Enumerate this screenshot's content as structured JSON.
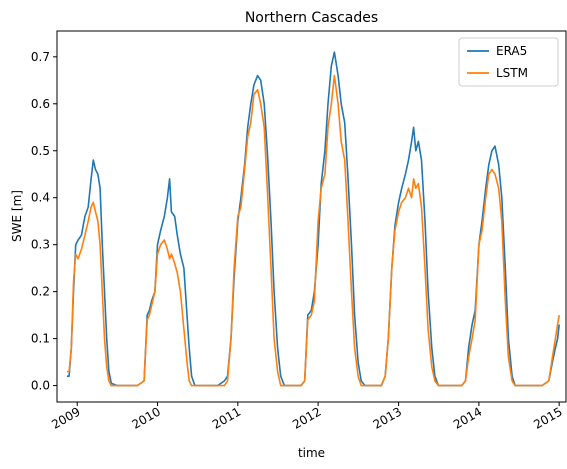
{
  "chart_data": {
    "type": "line",
    "title": "Northern Cascades",
    "xlabel": "time",
    "ylabel": "SWE [m]",
    "xlim": [
      "2008-10-01",
      "2015-02-01"
    ],
    "ylim": [
      -0.035,
      0.755
    ],
    "xticks": [
      {
        "date": "2009-01-01",
        "label": "2009"
      },
      {
        "date": "2010-01-01",
        "label": "2010"
      },
      {
        "date": "2011-01-01",
        "label": "2011"
      },
      {
        "date": "2012-01-01",
        "label": "2012"
      },
      {
        "date": "2013-01-01",
        "label": "2013"
      },
      {
        "date": "2014-01-01",
        "label": "2014"
      },
      {
        "date": "2015-01-01",
        "label": "2015"
      }
    ],
    "yticks": [
      {
        "value": 0.0,
        "label": "0.0"
      },
      {
        "value": 0.1,
        "label": "0.1"
      },
      {
        "value": 0.2,
        "label": "0.2"
      },
      {
        "value": 0.3,
        "label": "0.3"
      },
      {
        "value": 0.4,
        "label": "0.4"
      },
      {
        "value": 0.5,
        "label": "0.5"
      },
      {
        "value": 0.6,
        "label": "0.6"
      },
      {
        "value": 0.7,
        "label": "0.7"
      }
    ],
    "legend_position": "top-right",
    "grid": false,
    "series": [
      {
        "name": "ERA5",
        "color": "#1f77b4",
        "points": [
          [
            "2008-11-15",
            0.02
          ],
          [
            "2008-11-25",
            0.02
          ],
          [
            "2008-12-05",
            0.08
          ],
          [
            "2008-12-15",
            0.2
          ],
          [
            "2008-12-25",
            0.3
          ],
          [
            "2009-01-05",
            0.31
          ],
          [
            "2009-01-20",
            0.32
          ],
          [
            "2009-02-05",
            0.36
          ],
          [
            "2009-02-20",
            0.38
          ],
          [
            "2009-03-05",
            0.44
          ],
          [
            "2009-03-15",
            0.48
          ],
          [
            "2009-03-25",
            0.46
          ],
          [
            "2009-04-05",
            0.45
          ],
          [
            "2009-04-15",
            0.42
          ],
          [
            "2009-04-25",
            0.3
          ],
          [
            "2009-05-05",
            0.2
          ],
          [
            "2009-05-15",
            0.1
          ],
          [
            "2009-05-25",
            0.03
          ],
          [
            "2009-06-05",
            0.005
          ],
          [
            "2009-07-01",
            0.0
          ],
          [
            "2009-10-01",
            0.0
          ],
          [
            "2009-11-01",
            0.01
          ],
          [
            "2009-11-15",
            0.15
          ],
          [
            "2009-11-25",
            0.16
          ],
          [
            "2009-12-05",
            0.18
          ],
          [
            "2009-12-20",
            0.2
          ],
          [
            "2010-01-01",
            0.3
          ],
          [
            "2010-01-15",
            0.33
          ],
          [
            "2010-02-01",
            0.36
          ],
          [
            "2010-02-15",
            0.4
          ],
          [
            "2010-02-25",
            0.44
          ],
          [
            "2010-03-05",
            0.37
          ],
          [
            "2010-03-20",
            0.36
          ],
          [
            "2010-04-01",
            0.32
          ],
          [
            "2010-04-15",
            0.28
          ],
          [
            "2010-05-01",
            0.25
          ],
          [
            "2010-05-15",
            0.15
          ],
          [
            "2010-05-25",
            0.08
          ],
          [
            "2010-06-05",
            0.02
          ],
          [
            "2010-06-20",
            0.0
          ],
          [
            "2010-10-01",
            0.0
          ],
          [
            "2010-11-01",
            0.01
          ],
          [
            "2010-11-15",
            0.02
          ],
          [
            "2010-12-01",
            0.1
          ],
          [
            "2010-12-15",
            0.23
          ],
          [
            "2011-01-01",
            0.35
          ],
          [
            "2011-01-15",
            0.4
          ],
          [
            "2011-02-01",
            0.47
          ],
          [
            "2011-02-15",
            0.55
          ],
          [
            "2011-03-01",
            0.6
          ],
          [
            "2011-03-15",
            0.64
          ],
          [
            "2011-04-01",
            0.66
          ],
          [
            "2011-04-15",
            0.65
          ],
          [
            "2011-05-01",
            0.6
          ],
          [
            "2011-05-15",
            0.5
          ],
          [
            "2011-06-01",
            0.35
          ],
          [
            "2011-06-15",
            0.2
          ],
          [
            "2011-07-01",
            0.08
          ],
          [
            "2011-07-15",
            0.02
          ],
          [
            "2011-08-01",
            0.0
          ],
          [
            "2011-10-15",
            0.0
          ],
          [
            "2011-11-01",
            0.01
          ],
          [
            "2011-11-15",
            0.15
          ],
          [
            "2011-12-01",
            0.16
          ],
          [
            "2011-12-15",
            0.2
          ],
          [
            "2012-01-01",
            0.3
          ],
          [
            "2012-01-15",
            0.43
          ],
          [
            "2012-02-01",
            0.5
          ],
          [
            "2012-02-15",
            0.6
          ],
          [
            "2012-03-01",
            0.68
          ],
          [
            "2012-03-15",
            0.71
          ],
          [
            "2012-04-01",
            0.66
          ],
          [
            "2012-04-15",
            0.6
          ],
          [
            "2012-05-01",
            0.56
          ],
          [
            "2012-05-15",
            0.45
          ],
          [
            "2012-06-01",
            0.3
          ],
          [
            "2012-06-15",
            0.15
          ],
          [
            "2012-07-01",
            0.05
          ],
          [
            "2012-07-15",
            0.01
          ],
          [
            "2012-08-01",
            0.0
          ],
          [
            "2012-10-15",
            0.0
          ],
          [
            "2012-11-01",
            0.02
          ],
          [
            "2012-11-15",
            0.1
          ],
          [
            "2012-12-01",
            0.25
          ],
          [
            "2012-12-15",
            0.34
          ],
          [
            "2013-01-01",
            0.39
          ],
          [
            "2013-01-15",
            0.42
          ],
          [
            "2013-02-01",
            0.45
          ],
          [
            "2013-02-15",
            0.48
          ],
          [
            "2013-03-01",
            0.52
          ],
          [
            "2013-03-10",
            0.55
          ],
          [
            "2013-03-20",
            0.5
          ],
          [
            "2013-04-01",
            0.52
          ],
          [
            "2013-04-15",
            0.48
          ],
          [
            "2013-05-01",
            0.35
          ],
          [
            "2013-05-15",
            0.2
          ],
          [
            "2013-06-01",
            0.08
          ],
          [
            "2013-06-15",
            0.02
          ],
          [
            "2013-07-01",
            0.0
          ],
          [
            "2013-10-15",
            0.0
          ],
          [
            "2013-11-01",
            0.01
          ],
          [
            "2013-11-15",
            0.08
          ],
          [
            "2013-12-01",
            0.13
          ],
          [
            "2013-12-15",
            0.16
          ],
          [
            "2014-01-01",
            0.3
          ],
          [
            "2014-01-15",
            0.35
          ],
          [
            "2014-02-01",
            0.42
          ],
          [
            "2014-02-15",
            0.47
          ],
          [
            "2014-03-01",
            0.5
          ],
          [
            "2014-03-15",
            0.51
          ],
          [
            "2014-04-01",
            0.47
          ],
          [
            "2014-04-15",
            0.4
          ],
          [
            "2014-05-01",
            0.25
          ],
          [
            "2014-05-15",
            0.1
          ],
          [
            "2014-06-01",
            0.02
          ],
          [
            "2014-06-15",
            0.0
          ],
          [
            "2014-10-15",
            0.0
          ],
          [
            "2014-11-15",
            0.01
          ],
          [
            "2014-12-01",
            0.05
          ],
          [
            "2014-12-15",
            0.08
          ],
          [
            "2014-12-25",
            0.1
          ],
          [
            "2015-01-01",
            0.13
          ]
        ]
      },
      {
        "name": "LSTM",
        "color": "#ff7f0e",
        "points": [
          [
            "2008-11-15",
            0.03
          ],
          [
            "2008-11-25",
            0.03
          ],
          [
            "2008-12-05",
            0.08
          ],
          [
            "2008-12-15",
            0.22
          ],
          [
            "2008-12-25",
            0.28
          ],
          [
            "2009-01-05",
            0.27
          ],
          [
            "2009-01-20",
            0.29
          ],
          [
            "2009-02-05",
            0.32
          ],
          [
            "2009-02-20",
            0.35
          ],
          [
            "2009-03-05",
            0.38
          ],
          [
            "2009-03-15",
            0.39
          ],
          [
            "2009-03-25",
            0.37
          ],
          [
            "2009-04-05",
            0.35
          ],
          [
            "2009-04-15",
            0.3
          ],
          [
            "2009-04-25",
            0.2
          ],
          [
            "2009-05-05",
            0.1
          ],
          [
            "2009-05-15",
            0.04
          ],
          [
            "2009-05-25",
            0.01
          ],
          [
            "2009-06-05",
            0.0
          ],
          [
            "2009-07-01",
            0.0
          ],
          [
            "2009-10-01",
            0.0
          ],
          [
            "2009-11-01",
            0.01
          ],
          [
            "2009-11-15",
            0.14
          ],
          [
            "2009-11-25",
            0.15
          ],
          [
            "2009-12-05",
            0.17
          ],
          [
            "2009-12-20",
            0.2
          ],
          [
            "2010-01-01",
            0.28
          ],
          [
            "2010-01-15",
            0.3
          ],
          [
            "2010-02-01",
            0.31
          ],
          [
            "2010-02-15",
            0.29
          ],
          [
            "2010-02-25",
            0.27
          ],
          [
            "2010-03-05",
            0.28
          ],
          [
            "2010-03-20",
            0.26
          ],
          [
            "2010-04-01",
            0.24
          ],
          [
            "2010-04-15",
            0.2
          ],
          [
            "2010-05-01",
            0.12
          ],
          [
            "2010-05-15",
            0.05
          ],
          [
            "2010-05-25",
            0.01
          ],
          [
            "2010-06-05",
            0.0
          ],
          [
            "2010-06-20",
            0.0
          ],
          [
            "2010-10-01",
            0.0
          ],
          [
            "2010-11-01",
            0.0
          ],
          [
            "2010-11-15",
            0.01
          ],
          [
            "2010-12-01",
            0.1
          ],
          [
            "2010-12-15",
            0.25
          ],
          [
            "2011-01-01",
            0.36
          ],
          [
            "2011-01-15",
            0.38
          ],
          [
            "2011-02-01",
            0.46
          ],
          [
            "2011-02-15",
            0.53
          ],
          [
            "2011-03-01",
            0.56
          ],
          [
            "2011-03-15",
            0.62
          ],
          [
            "2011-04-01",
            0.63
          ],
          [
            "2011-04-15",
            0.6
          ],
          [
            "2011-05-01",
            0.55
          ],
          [
            "2011-05-15",
            0.42
          ],
          [
            "2011-06-01",
            0.25
          ],
          [
            "2011-06-15",
            0.1
          ],
          [
            "2011-07-01",
            0.03
          ],
          [
            "2011-07-15",
            0.0
          ],
          [
            "2011-08-01",
            0.0
          ],
          [
            "2011-10-15",
            0.0
          ],
          [
            "2011-11-01",
            0.01
          ],
          [
            "2011-11-15",
            0.14
          ],
          [
            "2011-12-01",
            0.15
          ],
          [
            "2011-12-15",
            0.18
          ],
          [
            "2012-01-01",
            0.35
          ],
          [
            "2012-01-15",
            0.42
          ],
          [
            "2012-02-01",
            0.45
          ],
          [
            "2012-02-15",
            0.55
          ],
          [
            "2012-03-01",
            0.6
          ],
          [
            "2012-03-15",
            0.66
          ],
          [
            "2012-04-01",
            0.6
          ],
          [
            "2012-04-15",
            0.52
          ],
          [
            "2012-05-01",
            0.48
          ],
          [
            "2012-05-15",
            0.36
          ],
          [
            "2012-06-01",
            0.2
          ],
          [
            "2012-06-15",
            0.08
          ],
          [
            "2012-07-01",
            0.02
          ],
          [
            "2012-07-15",
            0.0
          ],
          [
            "2012-08-01",
            0.0
          ],
          [
            "2012-10-15",
            0.0
          ],
          [
            "2012-11-01",
            0.02
          ],
          [
            "2012-11-15",
            0.1
          ],
          [
            "2012-12-01",
            0.25
          ],
          [
            "2012-12-15",
            0.33
          ],
          [
            "2013-01-01",
            0.37
          ],
          [
            "2013-01-15",
            0.39
          ],
          [
            "2013-02-01",
            0.4
          ],
          [
            "2013-02-15",
            0.42
          ],
          [
            "2013-03-01",
            0.4
          ],
          [
            "2013-03-10",
            0.44
          ],
          [
            "2013-03-20",
            0.42
          ],
          [
            "2013-04-01",
            0.43
          ],
          [
            "2013-04-15",
            0.38
          ],
          [
            "2013-05-01",
            0.25
          ],
          [
            "2013-05-15",
            0.12
          ],
          [
            "2013-06-01",
            0.04
          ],
          [
            "2013-06-15",
            0.01
          ],
          [
            "2013-07-01",
            0.0
          ],
          [
            "2013-10-15",
            0.0
          ],
          [
            "2013-11-01",
            0.01
          ],
          [
            "2013-11-15",
            0.06
          ],
          [
            "2013-12-01",
            0.1
          ],
          [
            "2013-12-15",
            0.14
          ],
          [
            "2014-01-01",
            0.3
          ],
          [
            "2014-01-15",
            0.33
          ],
          [
            "2014-02-01",
            0.4
          ],
          [
            "2014-02-15",
            0.45
          ],
          [
            "2014-03-01",
            0.46
          ],
          [
            "2014-03-15",
            0.45
          ],
          [
            "2014-04-01",
            0.42
          ],
          [
            "2014-04-15",
            0.35
          ],
          [
            "2014-05-01",
            0.18
          ],
          [
            "2014-05-15",
            0.06
          ],
          [
            "2014-06-01",
            0.01
          ],
          [
            "2014-06-15",
            0.0
          ],
          [
            "2014-10-15",
            0.0
          ],
          [
            "2014-11-15",
            0.01
          ],
          [
            "2014-12-01",
            0.06
          ],
          [
            "2014-12-15",
            0.1
          ],
          [
            "2014-12-25",
            0.13
          ],
          [
            "2015-01-01",
            0.15
          ]
        ]
      }
    ]
  }
}
